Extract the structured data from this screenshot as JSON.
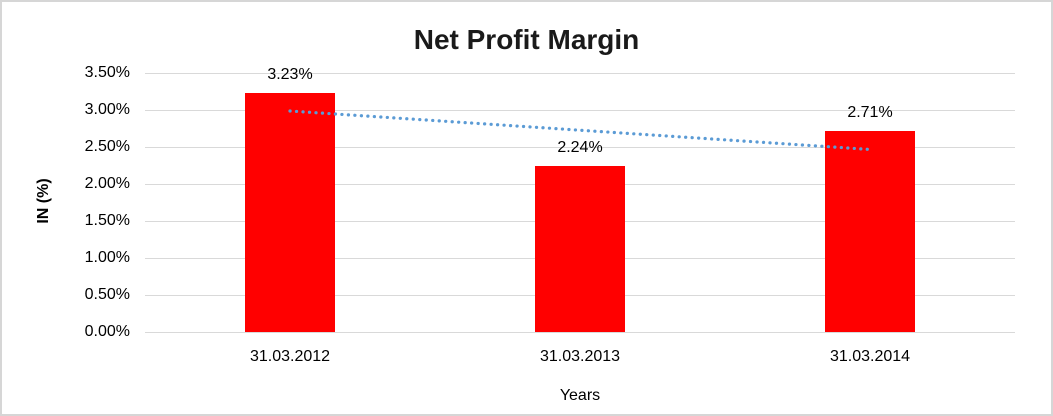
{
  "chart_data": {
    "type": "bar",
    "title": "Net Profit Margin",
    "categories": [
      "31.03.2012",
      "31.03.2013",
      "31.03.2014"
    ],
    "values": [
      3.23,
      2.24,
      2.71
    ],
    "data_labels": [
      "3.23%",
      "2.24%",
      "2.71%"
    ],
    "xlabel": "Years",
    "ylabel": "IN (%)",
    "ylim": [
      0,
      3.5
    ],
    "ytick_step": 0.5,
    "ytick_labels": [
      "0.00%",
      "0.50%",
      "1.00%",
      "1.50%",
      "2.00%",
      "2.50%",
      "3.00%",
      "3.50%"
    ],
    "grid": true,
    "legend": false,
    "trendline": {
      "type": "linear",
      "style": "dotted",
      "fitted_endpoints_pct": [
        2.99,
        2.47
      ]
    },
    "colors": {
      "bar": "#FF0000",
      "trendline": "#5B9BD5",
      "gridline": "#D9D9D9",
      "title_text": "#1A1A1A",
      "axis_text": "#000000",
      "frame_border": "#D6D6D6",
      "background": "#FFFFFF"
    }
  }
}
